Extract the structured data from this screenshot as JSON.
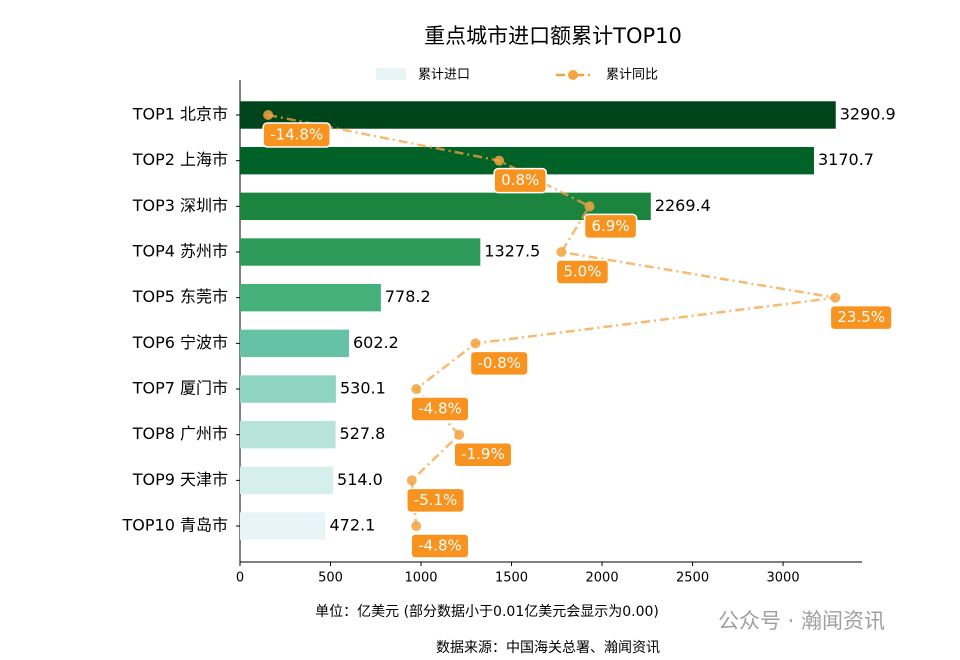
{
  "chart_data": {
    "type": "bar",
    "title": "重点城市进口额累计TOP10",
    "categories": [
      "TOP1 北京市",
      "TOP2 上海市",
      "TOP3 深圳市",
      "TOP4 苏州市",
      "TOP5 东莞市",
      "TOP6 宁波市",
      "TOP7 厦门市",
      "TOP8 广州市",
      "TOP9 天津市",
      "TOP10 青岛市"
    ],
    "series": [
      {
        "name": "累计进口",
        "type": "bar",
        "values": [
          3290.9,
          3170.7,
          2269.4,
          1327.5,
          778.2,
          602.2,
          530.1,
          527.8,
          514.0,
          472.1
        ],
        "value_labels": [
          "3290.9",
          "3170.7",
          "2269.4",
          "1327.5",
          "778.2",
          "602.2",
          "530.1",
          "527.8",
          "514.0",
          "472.1"
        ],
        "colors": [
          "#00441b",
          "#006227",
          "#1b843f",
          "#2e9a57",
          "#46b07a",
          "#66c2a4",
          "#8fd4c1",
          "#b8e3da",
          "#d5efec",
          "#e8f5f8"
        ]
      },
      {
        "name": "累计同比",
        "type": "line",
        "axis": "x2",
        "color": "#f5a340",
        "values": [
          -14.8,
          0.8,
          6.9,
          5.0,
          23.5,
          -0.8,
          -4.8,
          -1.9,
          -5.1,
          -4.8
        ],
        "value_labels": [
          "-14.8%",
          "0.8%",
          "6.9%",
          "5.0%",
          "23.5%",
          "-0.8%",
          "-4.8%",
          "-1.9%",
          "-5.1%",
          "-4.8%"
        ]
      }
    ],
    "xlim": [
      0,
      3436
    ],
    "xticks": [
      0,
      500,
      1000,
      1500,
      2000,
      2500,
      3000
    ],
    "x2lim": [
      -16.7,
      25.3
    ],
    "xlabel": "单位：亿美元  (部分数据小于0.01亿美元会显示为0.00)",
    "source": "数据来源：中国海关总署、瀚闻资讯",
    "watermark": "公众号 · 瀚闻资讯",
    "legend": "top"
  }
}
